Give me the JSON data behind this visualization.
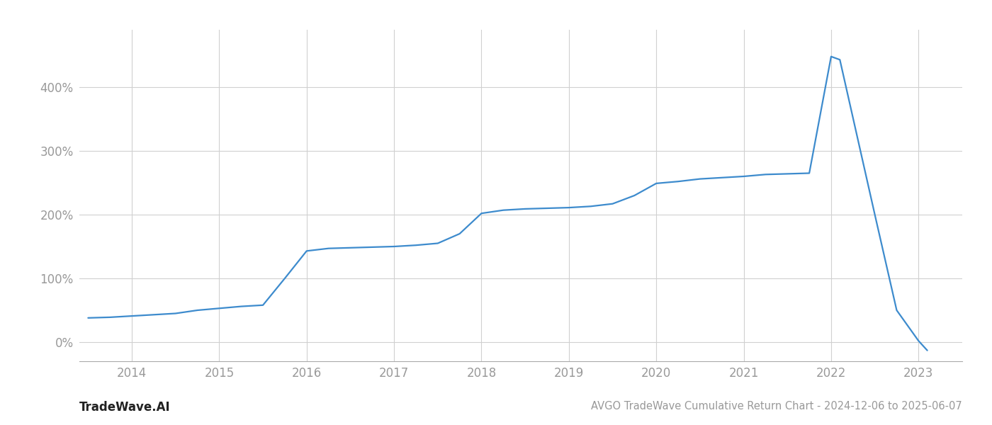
{
  "title": "AVGO TradeWave Cumulative Return Chart - 2024-12-06 to 2025-06-07",
  "watermark": "TradeWave.AI",
  "line_color": "#3d8bcd",
  "line_width": 1.6,
  "background_color": "#ffffff",
  "grid_color": "#d0d0d0",
  "x_values": [
    2013.5,
    2013.75,
    2014.0,
    2014.25,
    2014.5,
    2014.75,
    2015.0,
    2015.25,
    2015.5,
    2015.75,
    2016.0,
    2016.25,
    2016.5,
    2016.75,
    2017.0,
    2017.25,
    2017.5,
    2017.75,
    2018.0,
    2018.25,
    2018.5,
    2018.75,
    2019.0,
    2019.25,
    2019.5,
    2019.75,
    2020.0,
    2020.25,
    2020.5,
    2020.75,
    2021.0,
    2021.25,
    2021.5,
    2021.75,
    2022.0,
    2022.1,
    2022.5,
    2022.75,
    2023.0,
    2023.1
  ],
  "y_values": [
    38,
    39,
    41,
    43,
    45,
    50,
    53,
    56,
    58,
    100,
    143,
    147,
    148,
    149,
    150,
    152,
    155,
    170,
    202,
    207,
    209,
    210,
    211,
    213,
    217,
    230,
    249,
    252,
    256,
    258,
    260,
    263,
    264,
    265,
    448,
    443,
    200,
    50,
    2,
    -13
  ],
  "xlim": [
    2013.4,
    2023.5
  ],
  "ylim": [
    -30,
    490
  ],
  "yticks": [
    0,
    100,
    200,
    300,
    400
  ],
  "xticks": [
    2014,
    2015,
    2016,
    2017,
    2018,
    2019,
    2020,
    2021,
    2022,
    2023
  ],
  "tick_color": "#999999",
  "tick_fontsize": 12,
  "title_fontsize": 10.5,
  "watermark_fontsize": 12,
  "watermark_color": "#222222"
}
